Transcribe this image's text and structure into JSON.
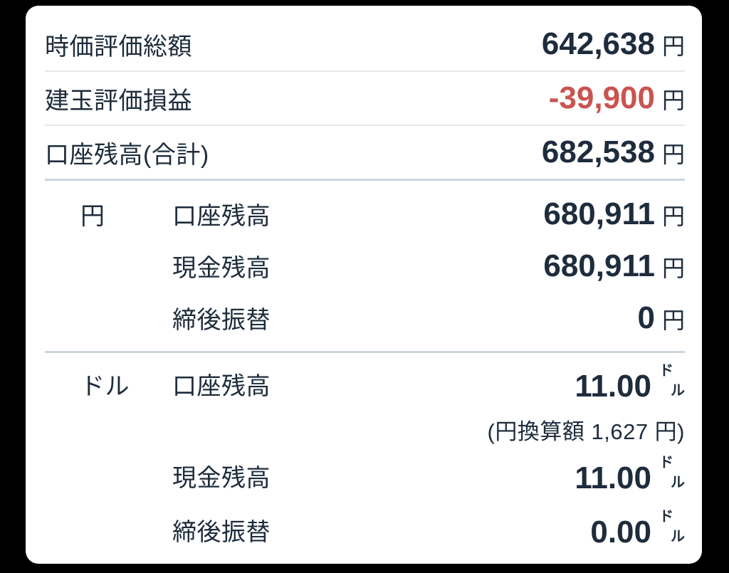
{
  "colors": {
    "page_bg": "#000000",
    "card_bg": "#ffffff",
    "text": "#1e2c3c",
    "negative": "#c95450",
    "divider_light": "#e3e7eb",
    "divider_strong": "#ccd5dd"
  },
  "card": {
    "summary_rows": [
      {
        "label": "時価評価総額",
        "value": "642,638",
        "unit": "円"
      },
      {
        "label": "建玉評価損益",
        "value": "-39,900",
        "unit": "円"
      },
      {
        "label": "口座残高(合計)",
        "value": "682,538",
        "unit": "円"
      }
    ],
    "yen_section": {
      "currency": "円",
      "rows": [
        {
          "label": "口座残高",
          "value": "680,911",
          "unit": "円"
        },
        {
          "label": "現金残高",
          "value": "680,911",
          "unit": "円"
        },
        {
          "label": "締後振替",
          "value": "0",
          "unit": "円"
        }
      ]
    },
    "dollar_section": {
      "currency": "ドル",
      "unit": "ドル",
      "unit_chars": [
        "ド",
        "ル"
      ],
      "conversion_note": "(円換算額 1,627 円)",
      "rows": [
        {
          "label": "口座残高",
          "value": "11.00"
        },
        {
          "label": "現金残高",
          "value": "11.00"
        },
        {
          "label": "締後振替",
          "value": "0.00"
        }
      ]
    }
  }
}
